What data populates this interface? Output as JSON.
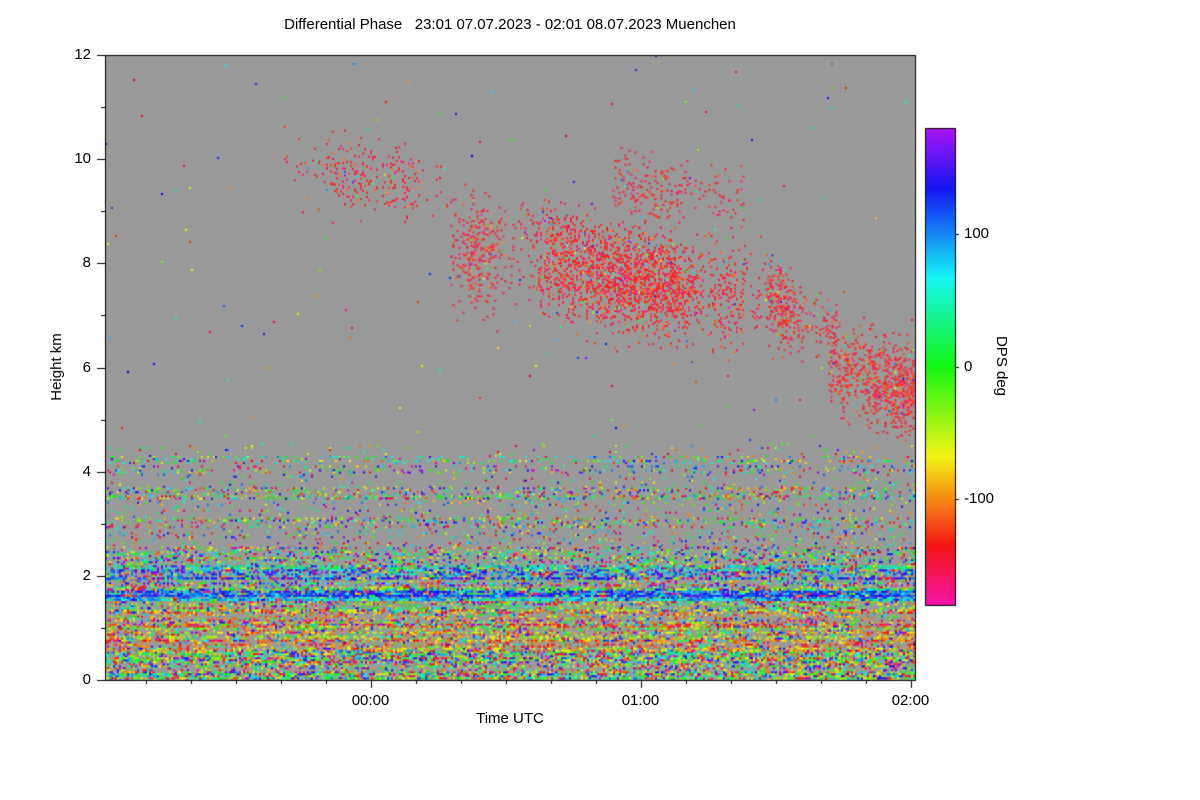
{
  "chart_data": {
    "type": "heatmap",
    "title": "Differential Phase   23:01 07.07.2023 - 02:01 08.07.2023 Muenchen",
    "xlabel": "Time UTC",
    "ylabel": "Height km",
    "xlim_minutes": [
      0,
      180
    ],
    "x_ticks": [
      {
        "label": "00:00",
        "minute": 59
      },
      {
        "label": "01:00",
        "minute": 119
      },
      {
        "label": "02:00",
        "minute": 179
      }
    ],
    "ylim": [
      0,
      12
    ],
    "y_ticks": [
      0,
      2,
      4,
      6,
      8,
      10,
      12
    ],
    "colorbar": {
      "label": "DPS deg",
      "vmin": -180,
      "vmax": 180,
      "ticks": [
        100,
        0,
        -100
      ]
    },
    "no_data_color": "#9a9a9a",
    "sparse_background_density": 0.0015,
    "noise_bands": [
      {
        "h": [
          0.0,
          0.55
        ],
        "density": 0.62,
        "mean": -60,
        "spread": 90,
        "uniform_frac": 0.55
      },
      {
        "h": [
          0.55,
          1.35
        ],
        "density": 0.55,
        "mean": -95,
        "spread": 40,
        "uniform_frac": 0.3
      },
      {
        "h": [
          1.35,
          1.55
        ],
        "density": 0.38,
        "mean": -60,
        "spread": 80,
        "uniform_frac": 0.4
      },
      {
        "h": [
          1.55,
          1.75
        ],
        "density": 0.85,
        "mean": 95,
        "spread": 35,
        "uniform_frac": 0.1
      },
      {
        "h": [
          1.75,
          1.95
        ],
        "density": 0.45,
        "mean": 40,
        "spread": 90,
        "uniform_frac": 0.35
      },
      {
        "h": [
          1.95,
          2.2
        ],
        "density": 0.65,
        "mean": 85,
        "spread": 50,
        "uniform_frac": 0.25
      },
      {
        "h": [
          2.2,
          2.55
        ],
        "density": 0.3,
        "mean": 0,
        "spread": 110,
        "uniform_frac": 0.45
      },
      {
        "h": [
          2.55,
          2.95
        ],
        "density": 0.1,
        "mean": 0,
        "spread": 130,
        "uniform_frac": 0.6
      },
      {
        "h": [
          2.95,
          3.12
        ],
        "density": 0.3,
        "mean": -30,
        "spread": 110,
        "uniform_frac": 0.5
      },
      {
        "h": [
          3.12,
          3.5
        ],
        "density": 0.07,
        "mean": 0,
        "spread": 130,
        "uniform_frac": 0.6
      },
      {
        "h": [
          3.5,
          3.7
        ],
        "density": 0.32,
        "mean": -20,
        "spread": 120,
        "uniform_frac": 0.55
      },
      {
        "h": [
          3.7,
          4.0
        ],
        "density": 0.05,
        "mean": 0,
        "spread": 130,
        "uniform_frac": 0.6
      },
      {
        "h": [
          4.0,
          4.12
        ],
        "density": 0.14,
        "mean": 30,
        "spread": 110,
        "uniform_frac": 0.5
      },
      {
        "h": [
          4.15,
          4.3
        ],
        "density": 0.2,
        "mean": 60,
        "spread": 90,
        "uniform_frac": 0.5
      },
      {
        "h": [
          4.3,
          4.55
        ],
        "density": 0.03,
        "mean": 0,
        "spread": 130,
        "uniform_frac": 0.7
      }
    ],
    "clouds": [
      {
        "t0": 40,
        "t1": 77,
        "h0": 9.95,
        "h1": 9.3,
        "thickness": 0.85,
        "density": 0.2,
        "mean": -140,
        "spread": 16
      },
      {
        "t0": 77,
        "t1": 96,
        "h0": 8.35,
        "h1": 7.95,
        "thickness": 1.25,
        "density": 0.55,
        "mean": -140,
        "spread": 16
      },
      {
        "t0": 96,
        "t1": 151,
        "h0": 7.95,
        "h1": 7.25,
        "thickness": 1.15,
        "density": 0.62,
        "mean": -138,
        "spread": 16
      },
      {
        "t0": 92,
        "t1": 113,
        "h0": 8.75,
        "h1": 8.55,
        "thickness": 0.6,
        "density": 0.3,
        "mean": -140,
        "spread": 14
      },
      {
        "t0": 113,
        "t1": 142,
        "h0": 9.55,
        "h1": 9.15,
        "thickness": 0.7,
        "density": 0.34,
        "mean": -142,
        "spread": 14
      },
      {
        "t0": 147,
        "t1": 163,
        "h0": 7.35,
        "h1": 6.6,
        "thickness": 0.85,
        "density": 0.5,
        "mean": -138,
        "spread": 15
      },
      {
        "t0": 150,
        "t1": 174,
        "h0": 6.95,
        "h1": 6.35,
        "thickness": 0.45,
        "density": 0.18,
        "mean": -140,
        "spread": 15
      },
      {
        "t0": 161,
        "t1": 180,
        "h0": 6.0,
        "h1": 5.5,
        "thickness": 0.95,
        "density": 0.68,
        "mean": -136,
        "spread": 15
      }
    ]
  }
}
